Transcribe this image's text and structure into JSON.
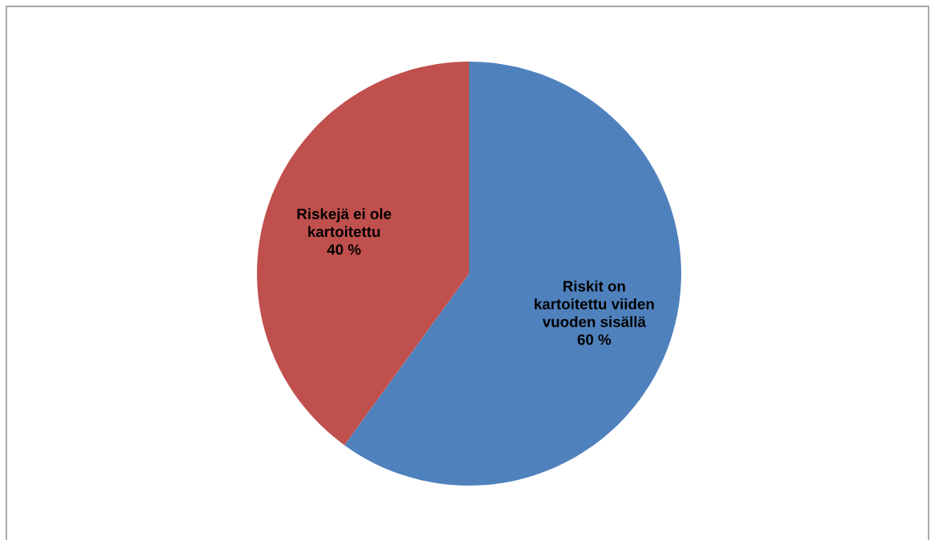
{
  "chart_data": {
    "type": "pie",
    "categories": [
      "Riskit on\nkartoitettu viiden\nvuoden sisällä",
      "Riskejä ei ole\nkartoitettu"
    ],
    "values": [
      60,
      40
    ],
    "value_labels": [
      "60 %",
      "40 %"
    ],
    "colors": [
      "#4f81bd",
      "#c0504d"
    ],
    "legend": false
  }
}
